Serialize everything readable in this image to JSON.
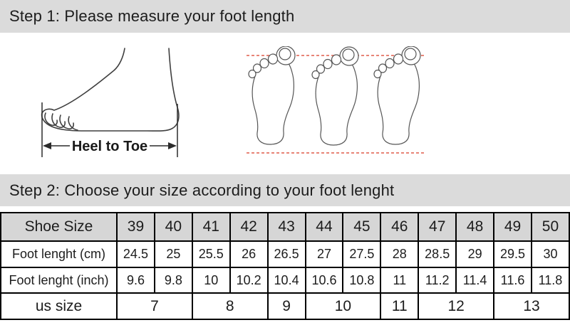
{
  "colors": {
    "bar_background": "#dbdbdb",
    "table_header_background": "#d6d6d6",
    "border": "#000000",
    "accent_dotted_line": "#e05c4a",
    "text": "#1c1c1c"
  },
  "step1": {
    "title": "Step 1: Please measure your foot length"
  },
  "step2": {
    "title": "Step 2: Choose your size according to your foot lenght"
  },
  "illustration": {
    "heel_to_toe_label": "Heel to Toe"
  },
  "size_table": {
    "rows": [
      {
        "label": "Shoe Size",
        "cells": [
          {
            "text": "39",
            "span": 1
          },
          {
            "text": "40",
            "span": 1
          },
          {
            "text": "41",
            "span": 1
          },
          {
            "text": "42",
            "span": 1
          },
          {
            "text": "43",
            "span": 1
          },
          {
            "text": "44",
            "span": 1
          },
          {
            "text": "45",
            "span": 1
          },
          {
            "text": "46",
            "span": 1
          },
          {
            "text": "47",
            "span": 1
          },
          {
            "text": "48",
            "span": 1
          },
          {
            "text": "49",
            "span": 1
          },
          {
            "text": "50",
            "span": 1
          }
        ]
      },
      {
        "label": "Foot lenght (cm)",
        "cells": [
          {
            "text": "24.5",
            "span": 1
          },
          {
            "text": "25",
            "span": 1
          },
          {
            "text": "25.5",
            "span": 1
          },
          {
            "text": "26",
            "span": 1
          },
          {
            "text": "26.5",
            "span": 1
          },
          {
            "text": "27",
            "span": 1
          },
          {
            "text": "27.5",
            "span": 1
          },
          {
            "text": "28",
            "span": 1
          },
          {
            "text": "28.5",
            "span": 1
          },
          {
            "text": "29",
            "span": 1
          },
          {
            "text": "29.5",
            "span": 1
          },
          {
            "text": "30",
            "span": 1
          }
        ]
      },
      {
        "label": "Foot lenght (inch)",
        "cells": [
          {
            "text": "9.6",
            "span": 1
          },
          {
            "text": "9.8",
            "span": 1
          },
          {
            "text": "10",
            "span": 1
          },
          {
            "text": "10.2",
            "span": 1
          },
          {
            "text": "10.4",
            "span": 1
          },
          {
            "text": "10.6",
            "span": 1
          },
          {
            "text": "10.8",
            "span": 1
          },
          {
            "text": "11",
            "span": 1
          },
          {
            "text": "11.2",
            "span": 1
          },
          {
            "text": "11.4",
            "span": 1
          },
          {
            "text": "11.6",
            "span": 1
          },
          {
            "text": "11.8",
            "span": 1
          }
        ]
      },
      {
        "label": "us size",
        "cells": [
          {
            "text": "7",
            "span": 2
          },
          {
            "text": "8",
            "span": 2
          },
          {
            "text": "9",
            "span": 1
          },
          {
            "text": "10",
            "span": 2
          },
          {
            "text": "11",
            "span": 1
          },
          {
            "text": "12",
            "span": 2
          },
          {
            "text": "13",
            "span": 2
          }
        ]
      }
    ]
  }
}
